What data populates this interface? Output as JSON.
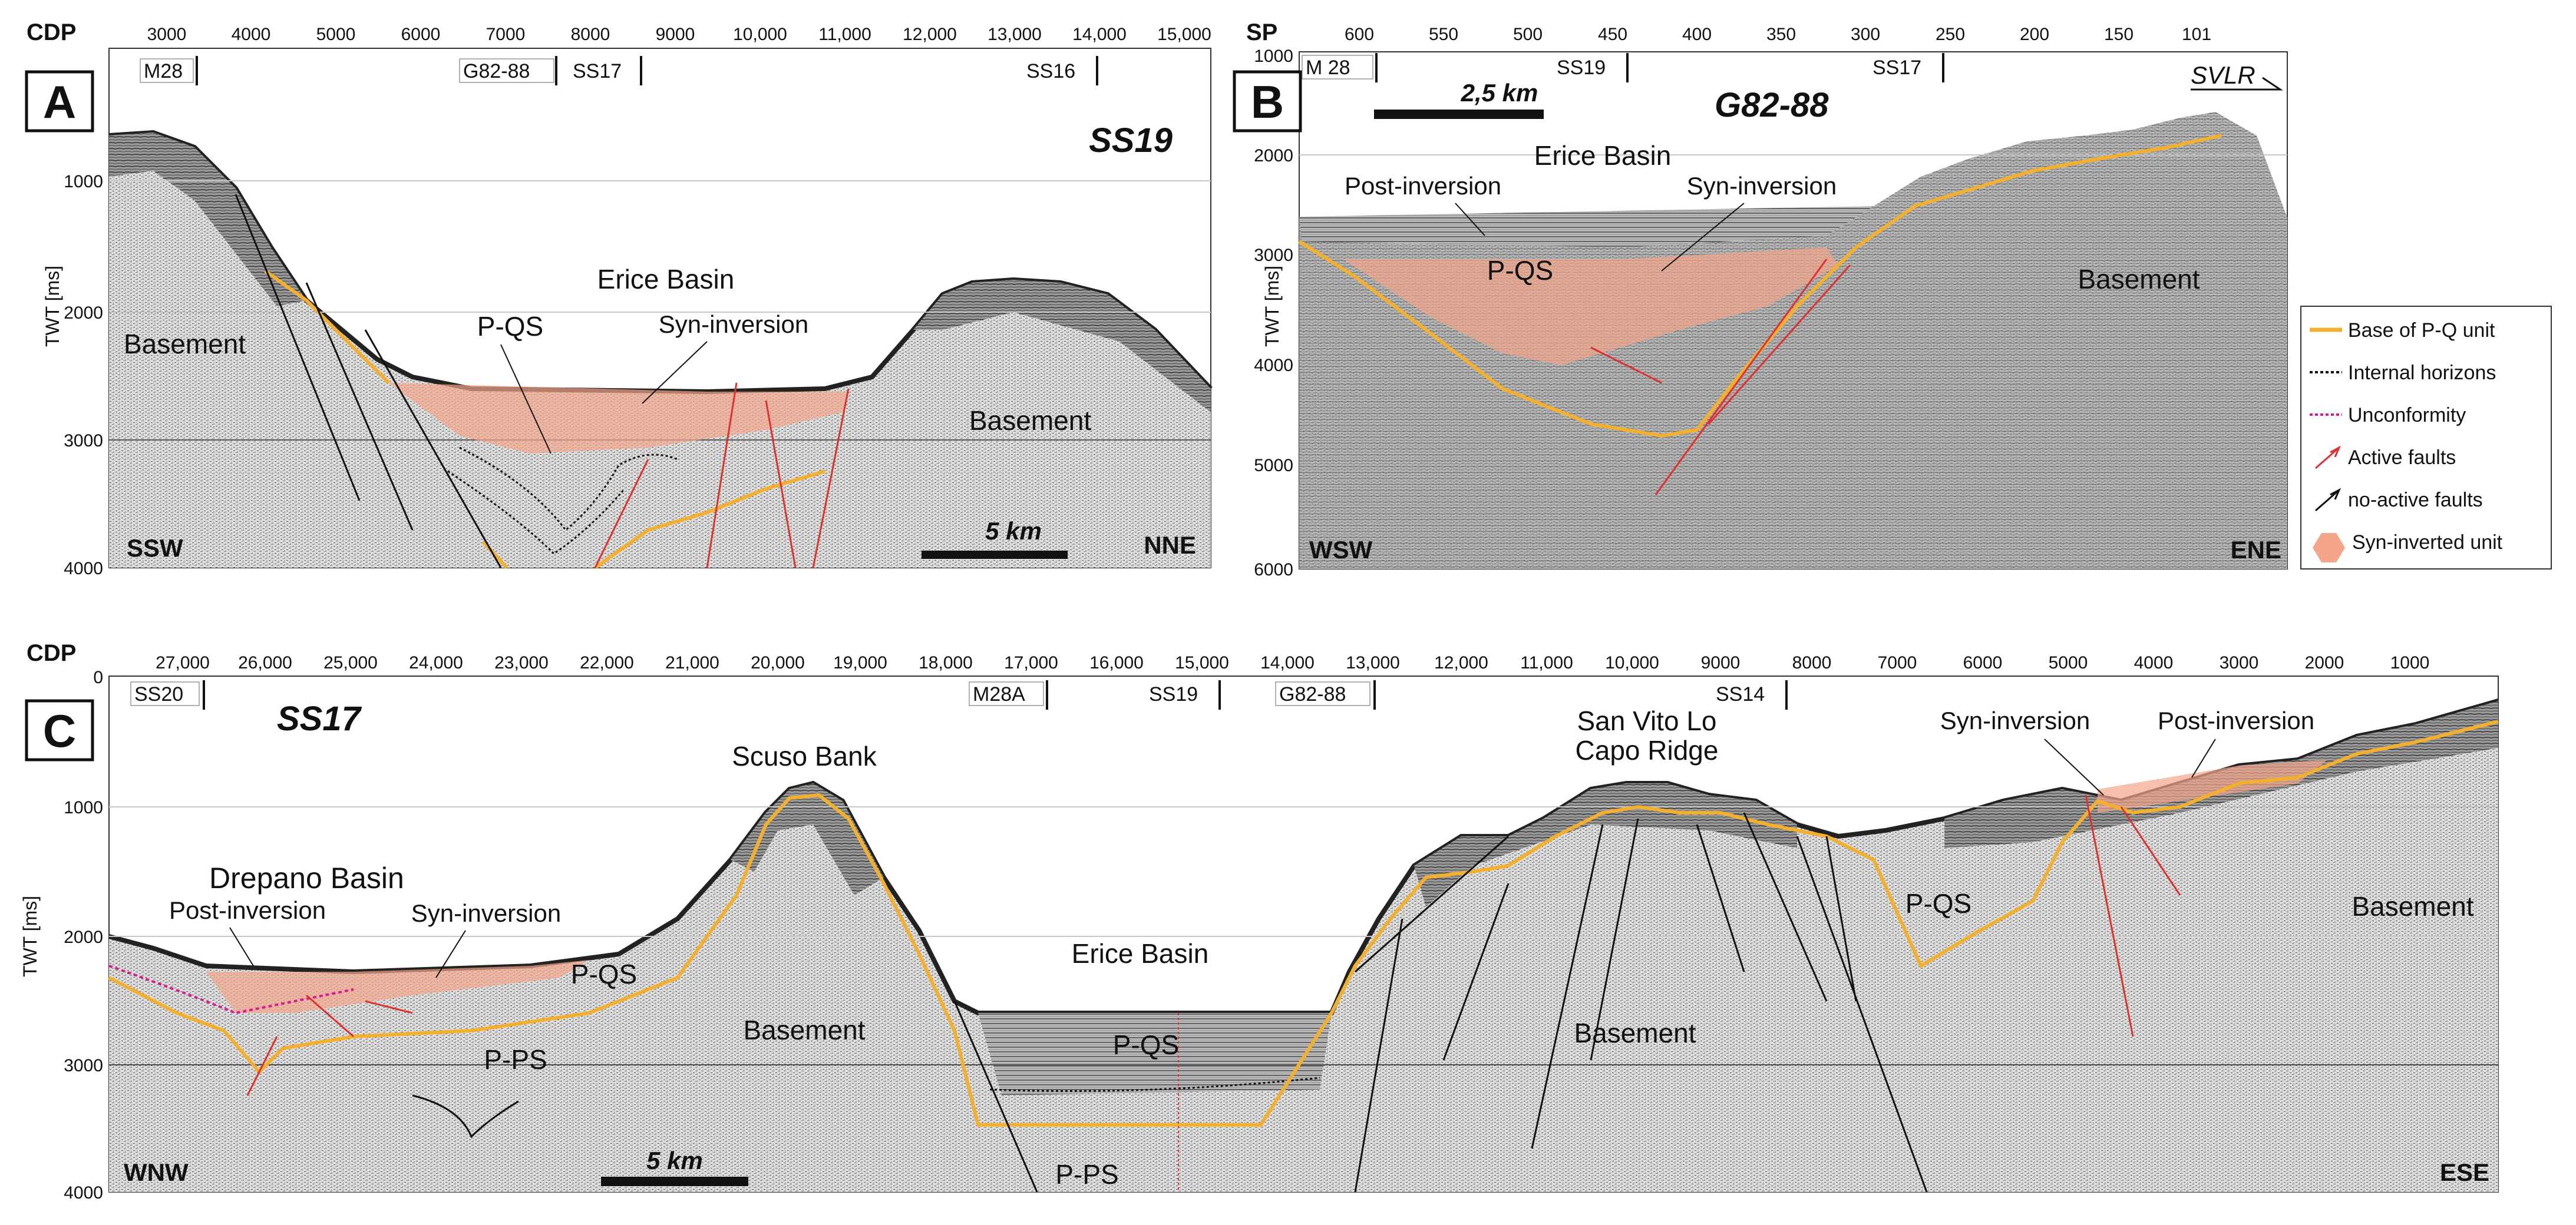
{
  "panels": {
    "A": {
      "letter": "A",
      "title": "SS19",
      "top_axis_name": "CDP",
      "top_ticks": [
        "3000",
        "4000",
        "5000",
        "6000",
        "7000",
        "8000",
        "9000",
        "10,000",
        "11,000",
        "12,000",
        "13,000",
        "14,000",
        "15,000"
      ],
      "wells": [
        "M28",
        "G82-88",
        "SS17",
        "SS16"
      ],
      "y_axis_label": "TWT [ms]",
      "y_ticks": [
        "1000",
        "2000",
        "3000",
        "4000"
      ],
      "labels": {
        "basin": "Erice Basin",
        "pqs": "P-QS",
        "syn": "Syn-inversion",
        "basement_left": "Basement",
        "basement_right": "Basement",
        "scale": "5 km",
        "left_dir": "SSW",
        "right_dir": "NNE"
      }
    },
    "B": {
      "letter": "B",
      "title": "G82-88",
      "top_axis_name": "SP",
      "top_ticks": [
        "600",
        "550",
        "500",
        "450",
        "400",
        "350",
        "300",
        "250",
        "200",
        "150",
        "101"
      ],
      "wells": [
        "M 28",
        "SS19",
        "SS17"
      ],
      "svlr": "SVLR",
      "y_axis_label": "TWT [ms]",
      "y_ticks": [
        "1000",
        "2000",
        "3000",
        "4000",
        "5000",
        "6000"
      ],
      "labels": {
        "basin": "Erice Basin",
        "post": "Post-inversion",
        "syn": "Syn-inversion",
        "pqs": "P-QS",
        "basement": "Basement",
        "scale": "2,5 km",
        "left_dir": "WSW",
        "right_dir": "ENE"
      }
    },
    "C": {
      "letter": "C",
      "title": "SS17",
      "top_axis_name": "CDP",
      "top_ticks": [
        "27,000",
        "26,000",
        "25,000",
        "24,000",
        "23,000",
        "22,000",
        "21,000",
        "20,000",
        "19,000",
        "18,000",
        "17,000",
        "16,000",
        "15,000",
        "14,000",
        "13,000",
        "12,000",
        "11,000",
        "10,000",
        "9000",
        "8000",
        "7000",
        "6000",
        "5000",
        "4000",
        "3000",
        "2000",
        "1000"
      ],
      "wells": [
        "SS20",
        "M28A",
        "SS19",
        "G82-88",
        "SS14"
      ],
      "y_axis_label": "TWT [ms]",
      "y_ticks": [
        "0",
        "1000",
        "2000",
        "3000",
        "4000"
      ],
      "labels": {
        "scuso": "Scuso Bank",
        "svlc1": "San Vito Lo",
        "svlc2": "Capo Ridge",
        "drepano": "Drepano Basin",
        "post_left": "Post-inversion",
        "syn_left": "Syn-inversion",
        "pqs_left": "P-QS",
        "pps_left": "P-PS",
        "basement_left": "Basement",
        "erice": "Erice Basin",
        "pqs_mid": "P-QS",
        "pps_mid": "P-PS",
        "basement_mid": "Basement",
        "pqs_right": "P-QS",
        "syn_right": "Syn-inversion",
        "post_right": "Post-inversion",
        "basement_right": "Basement",
        "scale": "5 km",
        "left_dir": "WNW",
        "right_dir": "ESE"
      }
    }
  },
  "legend": {
    "items": [
      {
        "label": "Base of P-Q unit",
        "color": "#f2b02e",
        "style": "solid"
      },
      {
        "label": "Internal horizons",
        "color": "#111111",
        "style": "dotted"
      },
      {
        "label": "Unconformity",
        "color": "#d81b8c",
        "style": "dotted"
      },
      {
        "label": "Active faults",
        "color": "#e03030",
        "style": "fault"
      },
      {
        "label": "no-active faults",
        "color": "#111111",
        "style": "fault"
      },
      {
        "label": "Syn-inverted unit",
        "color": "#f4a58a",
        "style": "patch"
      }
    ]
  },
  "colors": {
    "horizon_base_pq": "#f2b02e",
    "active_fault": "#e03030",
    "syn_inverted_fill": "#f4a58a",
    "unconformity": "#d81b8c",
    "seismic_bg": "#cfcfcf"
  }
}
